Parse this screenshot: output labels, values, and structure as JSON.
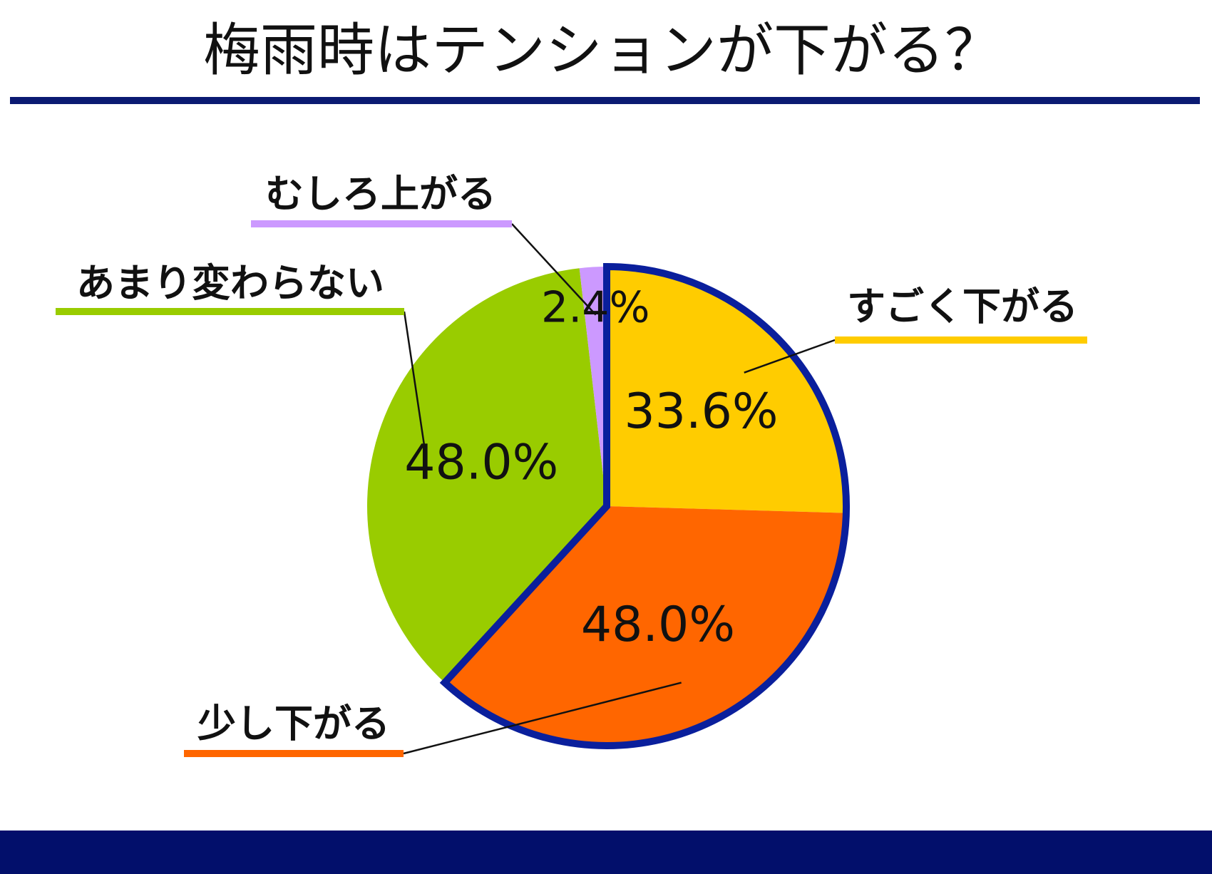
{
  "chart_data": {
    "type": "pie",
    "title": "梅雨時はテンションが下がる？",
    "categories": [
      "すごく下がる",
      "少し下がる",
      "あまり変わらない",
      "むしろ上がる"
    ],
    "values": [
      33.6,
      48.0,
      48.0,
      2.4
    ],
    "value_labels": [
      "33.6%",
      "48.0%",
      "48.0%",
      "2.4%"
    ],
    "colors": [
      "#ffcc00",
      "#ff6600",
      "#99cc00",
      "#cc99ff"
    ],
    "outline": {
      "color": "#0a1f9c",
      "slices": [
        0,
        1
      ]
    }
  }
}
